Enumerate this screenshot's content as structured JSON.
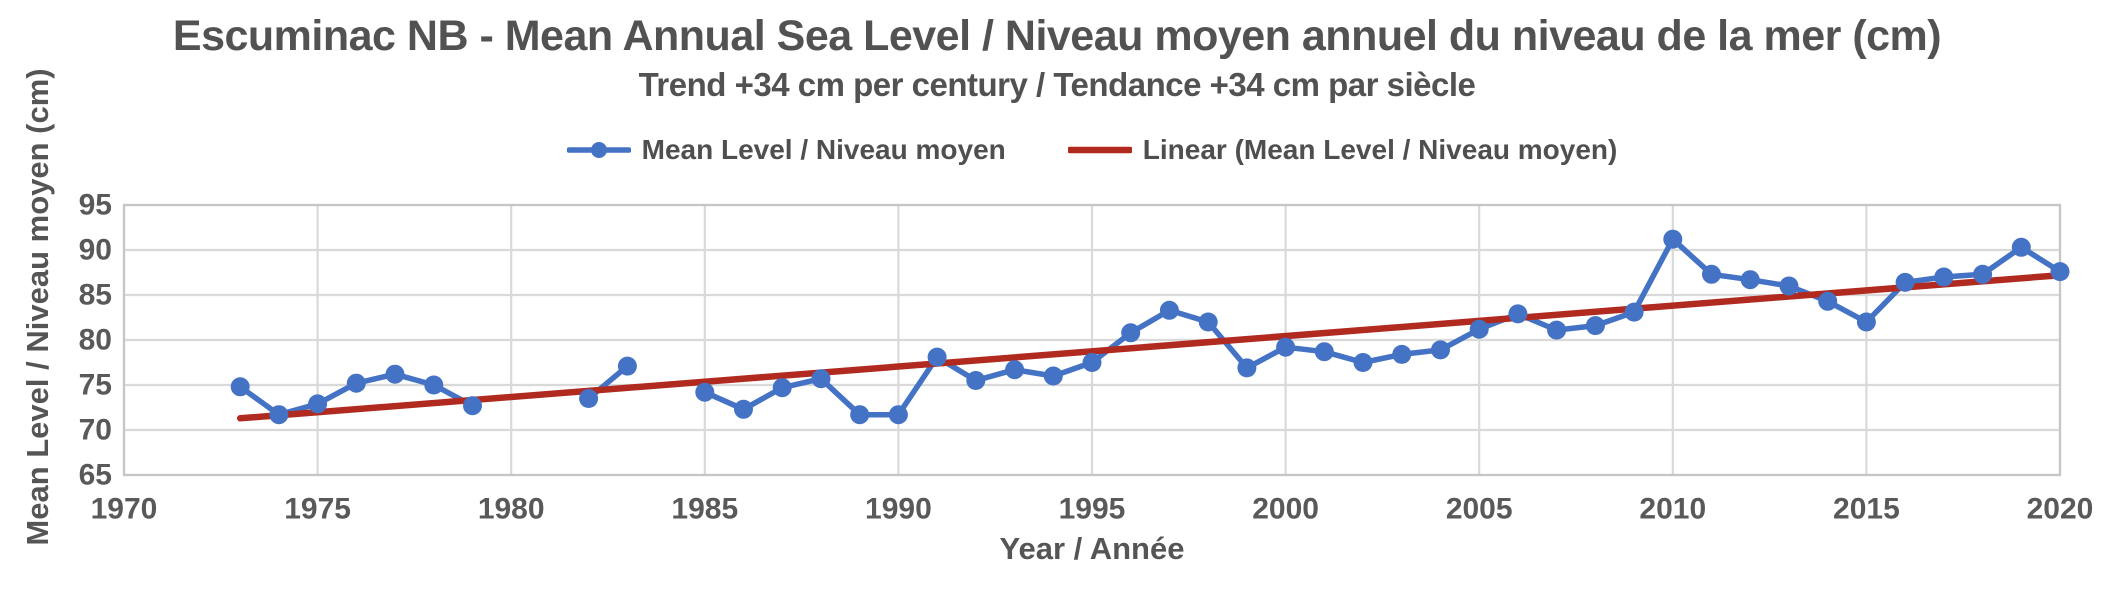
{
  "header": {
    "title": "Escuminac NB - Mean Annual Sea Level / Niveau moyen annuel du niveau de la mer (cm)",
    "subtitle": "Trend +34 cm per century / Tendance +34 cm par siècle"
  },
  "legend": {
    "items": [
      {
        "label": "Mean Level / Niveau moyen",
        "marker": "line-with-circle",
        "color": "#4472C4"
      },
      {
        "label": "Linear (Mean Level / Niveau moyen)",
        "marker": "line",
        "color": "#B02A1F"
      }
    ]
  },
  "axes": {
    "x_title": "Year / Année",
    "y_title": "Mean Level / Niveau moyen (cm)",
    "x_tick_labels": [
      "1970",
      "1975",
      "1980",
      "1985",
      "1990",
      "1995",
      "2000",
      "2005",
      "2010",
      "2015",
      "2020"
    ],
    "y_tick_labels": [
      "95",
      "90",
      "85",
      "80",
      "75",
      "70",
      "65"
    ]
  },
  "colors": {
    "series_blue": "#4472C4",
    "trend_red": "#B02A1F",
    "gridline": "#D9D9D9",
    "plot_border": "#C6C6C6",
    "text": "#595959"
  },
  "chart_data": {
    "type": "line",
    "title": "Escuminac NB - Mean Annual Sea Level / Niveau moyen annuel du niveau de la mer (cm)",
    "subtitle": "Trend +34 cm per century / Tendance +34 cm par siècle",
    "xlabel": "Year / Année",
    "ylabel": "Mean Level / Niveau moyen (cm)",
    "xlim": [
      1970,
      2020
    ],
    "ylim": [
      65,
      95
    ],
    "x_tick_step": 5,
    "y_tick_step": 5,
    "grid": true,
    "legend_position": "top-center",
    "missing_years": [
      1980,
      1981,
      1984
    ],
    "series": [
      {
        "name": "Mean Level / Niveau moyen",
        "type": "line",
        "markers": true,
        "color": "#4472C4",
        "x": [
          1973,
          1974,
          1975,
          1976,
          1977,
          1978,
          1979,
          1980,
          1981,
          1982,
          1983,
          1984,
          1985,
          1986,
          1987,
          1988,
          1989,
          1990,
          1991,
          1992,
          1993,
          1994,
          1995,
          1996,
          1997,
          1998,
          1999,
          2000,
          2001,
          2002,
          2003,
          2004,
          2005,
          2006,
          2007,
          2008,
          2009,
          2010,
          2011,
          2012,
          2013,
          2014,
          2015,
          2016,
          2017,
          2018,
          2019,
          2020
        ],
        "y": [
          74.8,
          71.7,
          72.9,
          75.2,
          76.2,
          75.0,
          72.7,
          null,
          null,
          73.5,
          77.1,
          null,
          74.2,
          72.3,
          74.7,
          75.7,
          71.7,
          71.7,
          78.1,
          75.5,
          76.7,
          76.0,
          77.5,
          80.8,
          83.3,
          82.0,
          76.9,
          79.2,
          78.7,
          77.5,
          78.4,
          78.9,
          81.2,
          82.9,
          81.1,
          81.6,
          83.1,
          91.2,
          87.3,
          86.7,
          86.0,
          84.3,
          82.0,
          86.4,
          87.0,
          87.3,
          90.3,
          87.6
        ]
      },
      {
        "name": "Linear (Mean Level / Niveau moyen)",
        "type": "trendline",
        "color": "#B02A1F",
        "slope_cm_per_century": 34,
        "points": [
          [
            1973,
            71.3
          ],
          [
            2020,
            87.2
          ]
        ]
      }
    ]
  }
}
